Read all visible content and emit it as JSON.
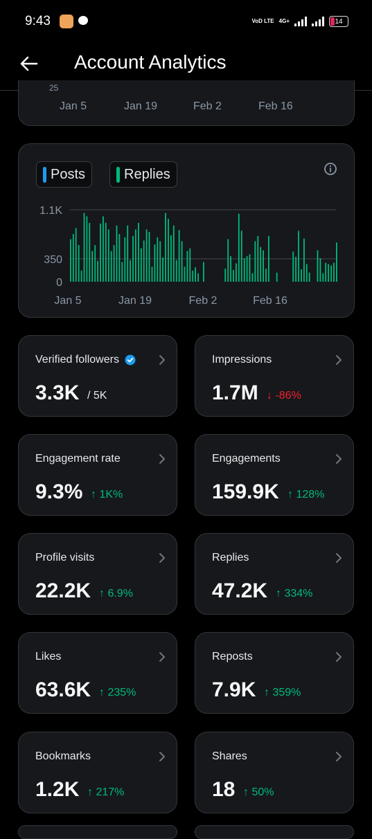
{
  "status_bar": {
    "time": "9:43",
    "network_label": "VoD LTE",
    "network_type": "4G+",
    "battery": "14"
  },
  "header": {
    "title": "Account Analytics"
  },
  "previous_chart": {
    "partial_tick": "25",
    "x_ticks": [
      "Jan 5",
      "Jan 19",
      "Feb 2",
      "Feb 16"
    ]
  },
  "chart_legend": {
    "posts": "Posts",
    "replies": "Replies",
    "posts_color": "#1d9bf0",
    "replies_color": "#00ba7c"
  },
  "chart_data": {
    "type": "bar",
    "y_ticks": [
      "1.1K",
      "350",
      "0"
    ],
    "x_ticks": [
      "Jan 5",
      "Jan 19",
      "Feb 2",
      "Feb 16"
    ],
    "ylim": [
      0,
      1100
    ],
    "grid": true,
    "series": [
      {
        "name": "Replies",
        "color": "#00ba7c",
        "values": [
          650,
          730,
          820,
          560,
          170,
          1050,
          1000,
          900,
          470,
          560,
          320,
          890,
          1000,
          900,
          800,
          470,
          560,
          860,
          730,
          300,
          680,
          860,
          330,
          700,
          800,
          900,
          510,
          630,
          800,
          760,
          230,
          570,
          680,
          620,
          370,
          1050,
          960,
          710,
          860,
          330,
          790,
          620,
          230,
          470,
          510,
          170,
          220,
          130,
          0,
          300,
          0,
          0,
          0,
          0,
          0,
          0,
          0,
          200,
          650,
          390,
          180,
          280,
          1040,
          780,
          360,
          390,
          420,
          130,
          620,
          700,
          530,
          480,
          200,
          700,
          0,
          0,
          140,
          0,
          0,
          0,
          0,
          0,
          460,
          380,
          780,
          190,
          660,
          270,
          140,
          0,
          0,
          480,
          360,
          130,
          290,
          270,
          250,
          290,
          600
        ]
      }
    ]
  },
  "metrics": [
    {
      "label": "Verified followers",
      "value": "3.3K",
      "suffix": "/ 5K",
      "verified": true
    },
    {
      "label": "Impressions",
      "value": "1.7M",
      "change": "↓ -86%",
      "direction": "down"
    },
    {
      "label": "Engagement rate",
      "value": "9.3%",
      "change": "↑ 1K%",
      "direction": "up"
    },
    {
      "label": "Engagements",
      "value": "159.9K",
      "change": "↑ 128%",
      "direction": "up"
    },
    {
      "label": "Profile visits",
      "value": "22.2K",
      "change": "↑ 6.9%",
      "direction": "up"
    },
    {
      "label": "Replies",
      "value": "47.2K",
      "change": "↑ 334%",
      "direction": "up"
    },
    {
      "label": "Likes",
      "value": "63.6K",
      "change": "↑ 235%",
      "direction": "up"
    },
    {
      "label": "Reposts",
      "value": "7.9K",
      "change": "↑ 359%",
      "direction": "up"
    },
    {
      "label": "Bookmarks",
      "value": "1.2K",
      "change": "↑ 217%",
      "direction": "up"
    },
    {
      "label": "Shares",
      "value": "18",
      "change": "↑ 50%",
      "direction": "up"
    }
  ]
}
